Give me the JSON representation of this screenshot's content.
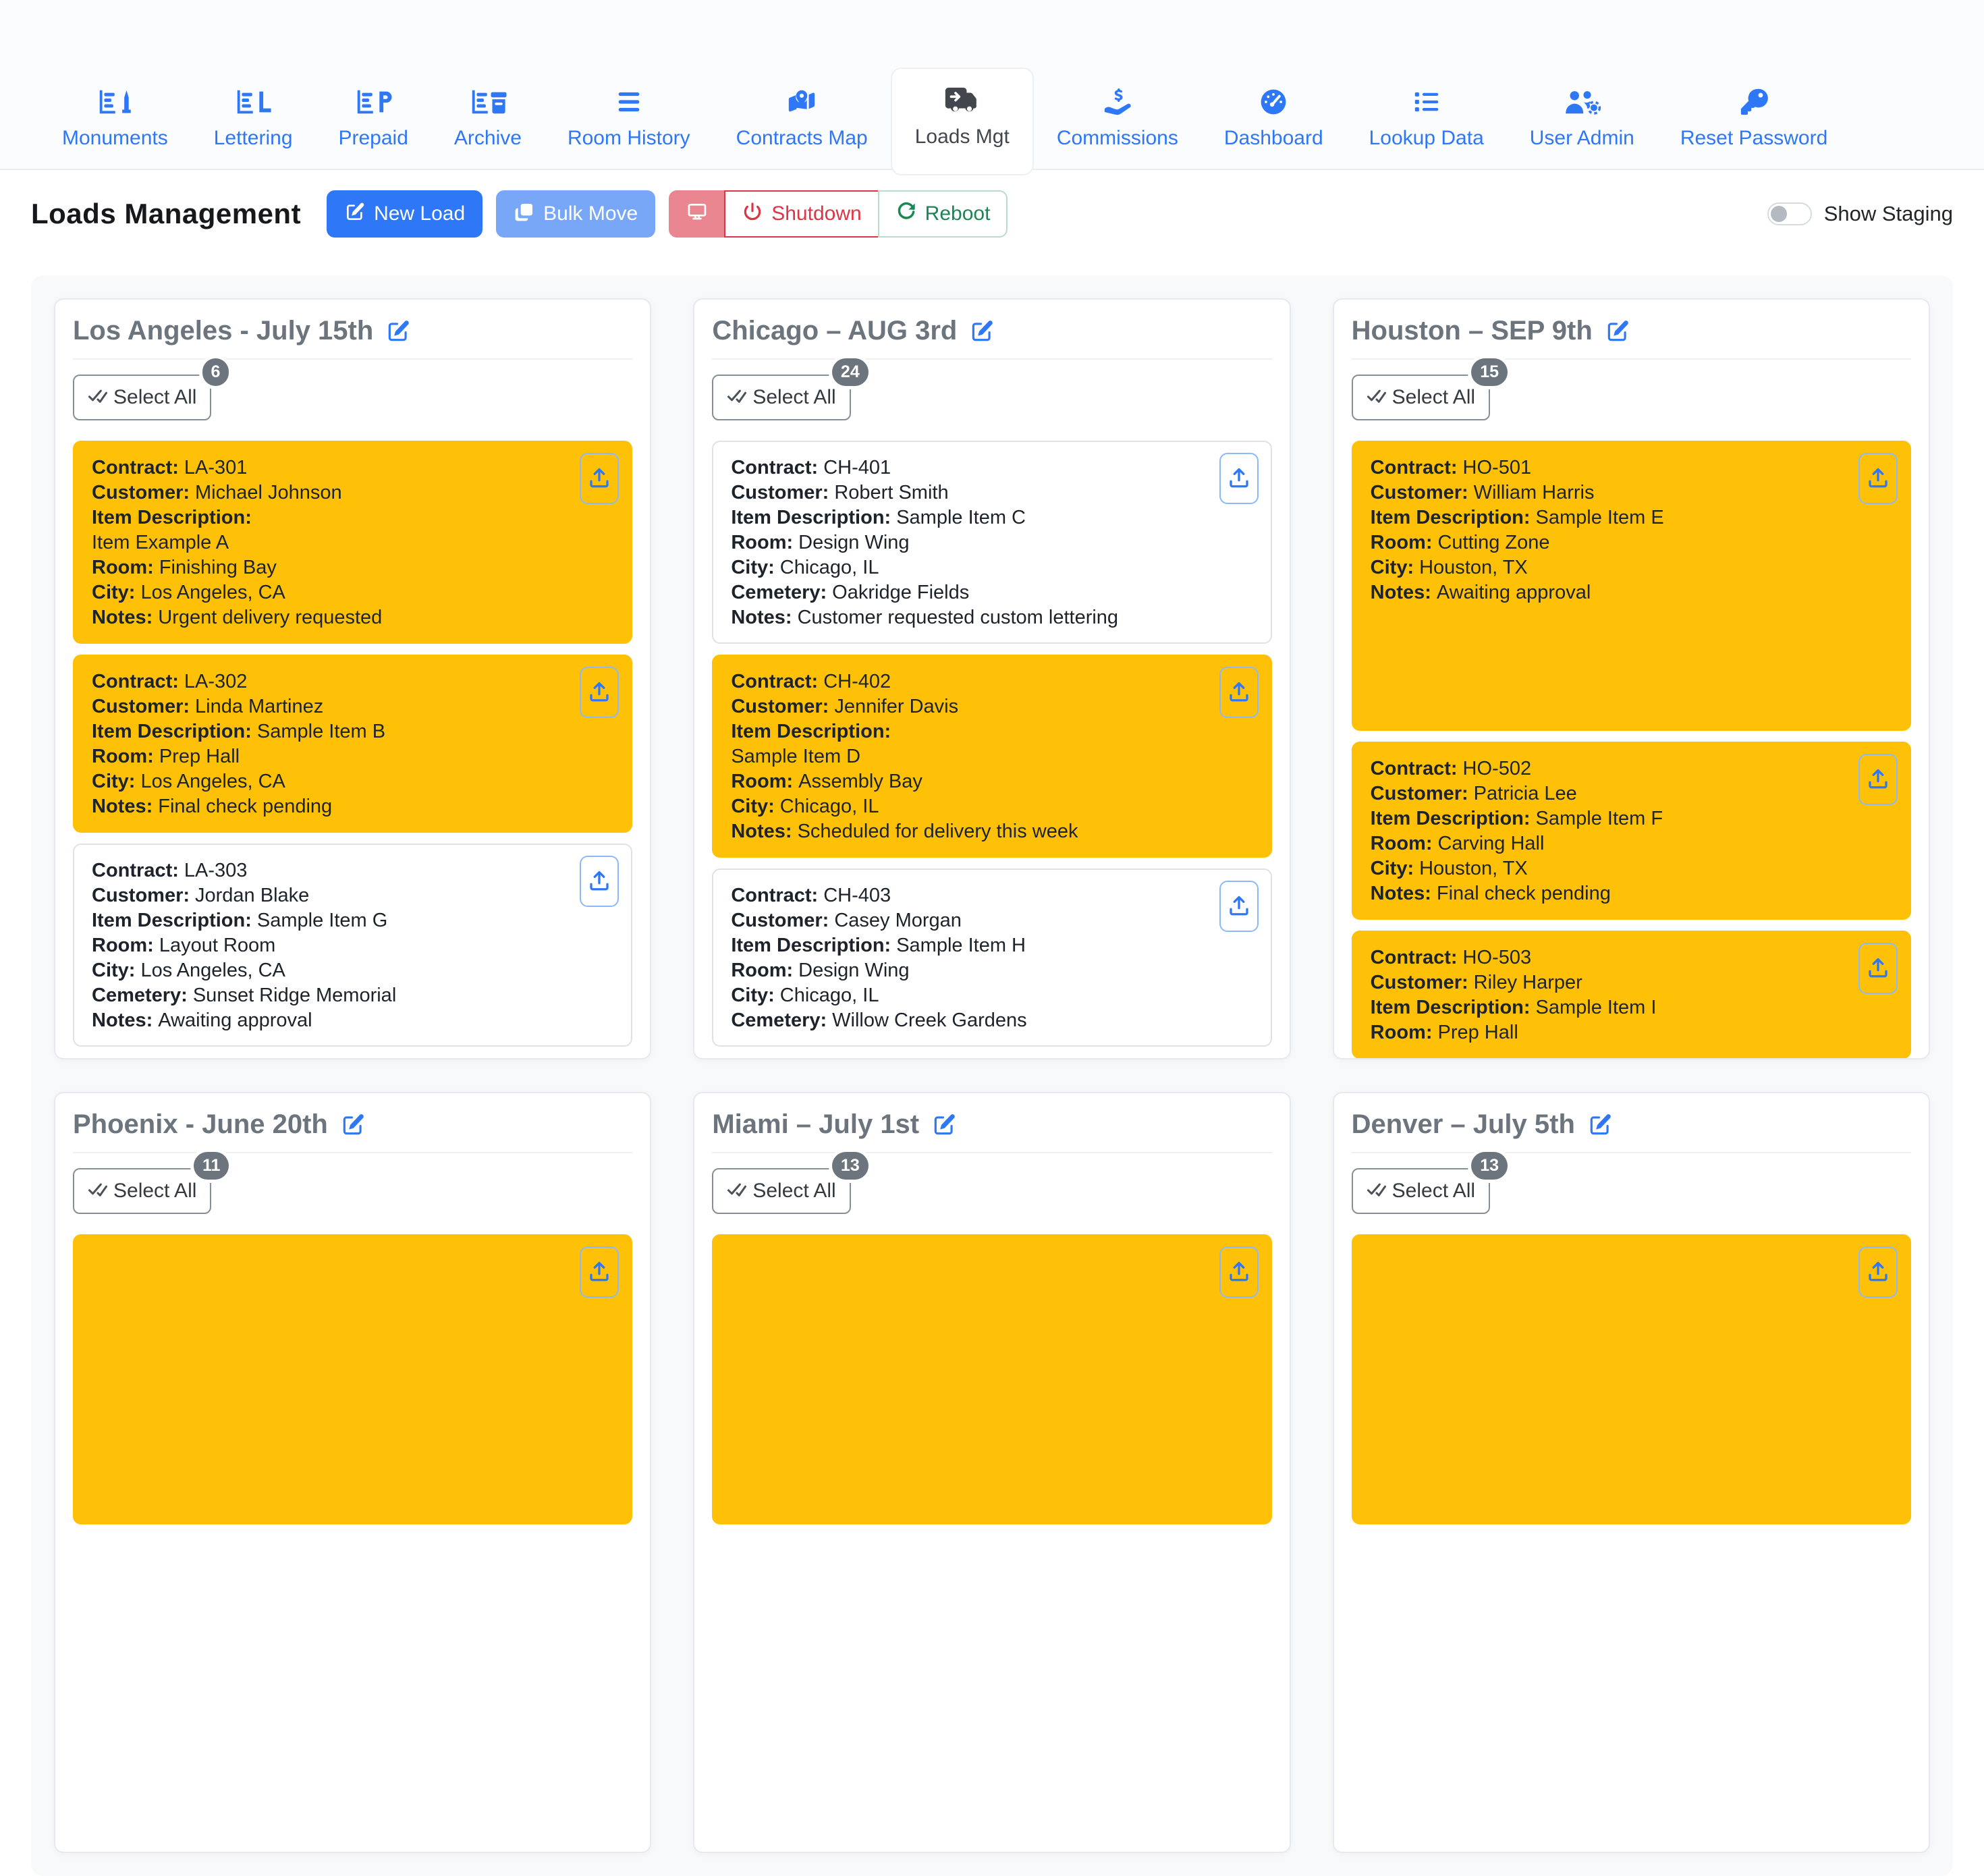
{
  "colors": {
    "primary": "#2e77f6",
    "primary_soft": "#79a7f8",
    "warning": "#ffc107",
    "danger": "#dc3545",
    "danger_soft": "#ea868f",
    "success": "#198754",
    "success_border": "#badbcc",
    "title_gray": "#6c757d"
  },
  "nav": {
    "tabs": [
      {
        "label": "Monuments",
        "icon": "chart-monument-icon",
        "active": false
      },
      {
        "label": "Lettering",
        "icon": "chart-letter-icon",
        "active": false
      },
      {
        "label": "Prepaid",
        "icon": "chart-prepaid-icon",
        "active": false
      },
      {
        "label": "Archive",
        "icon": "chart-archive-icon",
        "active": false
      },
      {
        "label": "Room History",
        "icon": "room-history-icon",
        "active": false
      },
      {
        "label": "Contracts Map",
        "icon": "map-location-icon",
        "active": false
      },
      {
        "label": "Loads Mgt",
        "icon": "truck-arrow-right-icon",
        "active": true
      },
      {
        "label": "Commissions",
        "icon": "hand-holding-dollar-icon",
        "active": false
      },
      {
        "label": "Dashboard",
        "icon": "gauge-icon",
        "active": false
      },
      {
        "label": "Lookup Data",
        "icon": "list-icon",
        "active": false
      },
      {
        "label": "User Admin",
        "icon": "users-gear-icon",
        "active": false
      },
      {
        "label": "Reset Password",
        "icon": "key-icon",
        "active": false
      }
    ]
  },
  "header": {
    "title": "Loads Management",
    "new_load_label": "New Load",
    "bulk_move_label": "Bulk Move",
    "shutdown_label": "Shutdown",
    "reboot_label": "Reboot",
    "show_staging_label": "Show Staging"
  },
  "board": {
    "select_all_label": "Select All",
    "columns": [
      {
        "title": "Los Angeles - July 15th",
        "count": "6",
        "contracts": [
          {
            "selected": true,
            "variant": "",
            "lines": [
              {
                "label": "Contract:",
                "value": "LA-301"
              },
              {
                "label": "Customer:",
                "value": "Michael Johnson"
              },
              {
                "label": "Item Description:",
                "value": ""
              },
              {
                "label": "",
                "value": "Item Example A"
              },
              {
                "label": "Room:",
                "value": "Finishing Bay"
              },
              {
                "label": "City:",
                "value": "Los Angeles, CA"
              },
              {
                "label": "Notes:",
                "value": "Urgent delivery requested"
              }
            ]
          },
          {
            "selected": true,
            "variant": "",
            "lines": [
              {
                "label": "Contract:",
                "value": "LA-302"
              },
              {
                "label": "Customer:",
                "value": "Linda Martinez"
              },
              {
                "label": "Item Description:",
                "value": "Sample Item B"
              },
              {
                "label": "Room:",
                "value": "Prep Hall"
              },
              {
                "label": "City:",
                "value": "Los Angeles, CA"
              },
              {
                "label": "Notes:",
                "value": "Final check pending"
              }
            ]
          },
          {
            "selected": false,
            "variant": "",
            "lines": [
              {
                "label": "Contract:",
                "value": "LA-303"
              },
              {
                "label": "Customer:",
                "value": "Jordan Blake"
              },
              {
                "label": "Item Description:",
                "value": "Sample Item G"
              },
              {
                "label": "Room:",
                "value": "Layout Room"
              },
              {
                "label": "City:",
                "value": "Los Angeles, CA"
              },
              {
                "label": "Cemetery:",
                "value": "Sunset Ridge Memorial"
              },
              {
                "label": "Notes:",
                "value": "Awaiting approval"
              }
            ]
          }
        ]
      },
      {
        "title": "Chicago – AUG 3rd",
        "count": "24",
        "contracts": [
          {
            "selected": false,
            "variant": "",
            "lines": [
              {
                "label": "Contract:",
                "value": "CH-401"
              },
              {
                "label": "Customer:",
                "value": "Robert Smith"
              },
              {
                "label": "Item Description:",
                "value": "Sample Item C"
              },
              {
                "label": "Room:",
                "value": "Design Wing"
              },
              {
                "label": "City:",
                "value": "Chicago, IL"
              },
              {
                "label": "Cemetery:",
                "value": "Oakridge Fields"
              },
              {
                "label": "Notes:",
                "value": "Customer requested custom lettering"
              }
            ]
          },
          {
            "selected": true,
            "variant": "",
            "lines": [
              {
                "label": "Contract:",
                "value": "CH-402"
              },
              {
                "label": "Customer:",
                "value": "Jennifer Davis"
              },
              {
                "label": "Item Description:",
                "value": ""
              },
              {
                "label": "",
                "value": "Sample Item D"
              },
              {
                "label": "Room:",
                "value": "Assembly Bay"
              },
              {
                "label": "City:",
                "value": "Chicago, IL"
              },
              {
                "label": "Notes:",
                "value": "Scheduled for delivery this week"
              }
            ]
          },
          {
            "selected": false,
            "variant": "",
            "lines": [
              {
                "label": "Contract:",
                "value": "CH-403"
              },
              {
                "label": "Customer:",
                "value": "Casey Morgan"
              },
              {
                "label": "Item Description:",
                "value": "Sample Item H"
              },
              {
                "label": "Room:",
                "value": "Design Wing"
              },
              {
                "label": "City:",
                "value": "Chicago, IL"
              },
              {
                "label": "Cemetery:",
                "value": "Willow Creek Gardens"
              }
            ]
          }
        ]
      },
      {
        "title": "Houston – SEP 9th",
        "count": "15",
        "contracts": [
          {
            "selected": true,
            "variant": "tall",
            "lines": [
              {
                "label": "Contract:",
                "value": "HO-501"
              },
              {
                "label": "Customer:",
                "value": "William Harris"
              },
              {
                "label": "Item Description:",
                "value": "Sample Item E"
              },
              {
                "label": "Room:",
                "value": "Cutting Zone"
              },
              {
                "label": "City:",
                "value": "Houston, TX"
              },
              {
                "label": "Notes:",
                "value": "Awaiting approval"
              }
            ]
          },
          {
            "selected": true,
            "variant": "",
            "lines": [
              {
                "label": "Contract:",
                "value": "HO-502"
              },
              {
                "label": "Customer:",
                "value": "Patricia Lee"
              },
              {
                "label": "Item Description:",
                "value": "Sample Item F"
              },
              {
                "label": "Room:",
                "value": "Carving Hall"
              },
              {
                "label": "City:",
                "value": "Houston, TX"
              },
              {
                "label": "Notes:",
                "value": "Final check pending"
              }
            ]
          },
          {
            "selected": true,
            "variant": "",
            "lines": [
              {
                "label": "Contract:",
                "value": "HO-503"
              },
              {
                "label": "Customer:",
                "value": "Riley Harper"
              },
              {
                "label": "Item Description:",
                "value": "Sample Item I"
              },
              {
                "label": "Room:",
                "value": "Prep Hall"
              }
            ]
          }
        ]
      },
      {
        "title": "Phoenix - June 20th",
        "count": "11",
        "contracts": [
          {
            "selected": true,
            "variant": "tall",
            "lines": []
          }
        ]
      },
      {
        "title": "Miami – July 1st",
        "count": "13",
        "contracts": [
          {
            "selected": true,
            "variant": "tall",
            "lines": []
          }
        ]
      },
      {
        "title": "Denver – July 5th",
        "count": "13",
        "contracts": [
          {
            "selected": true,
            "variant": "tall",
            "lines": []
          }
        ]
      }
    ]
  }
}
